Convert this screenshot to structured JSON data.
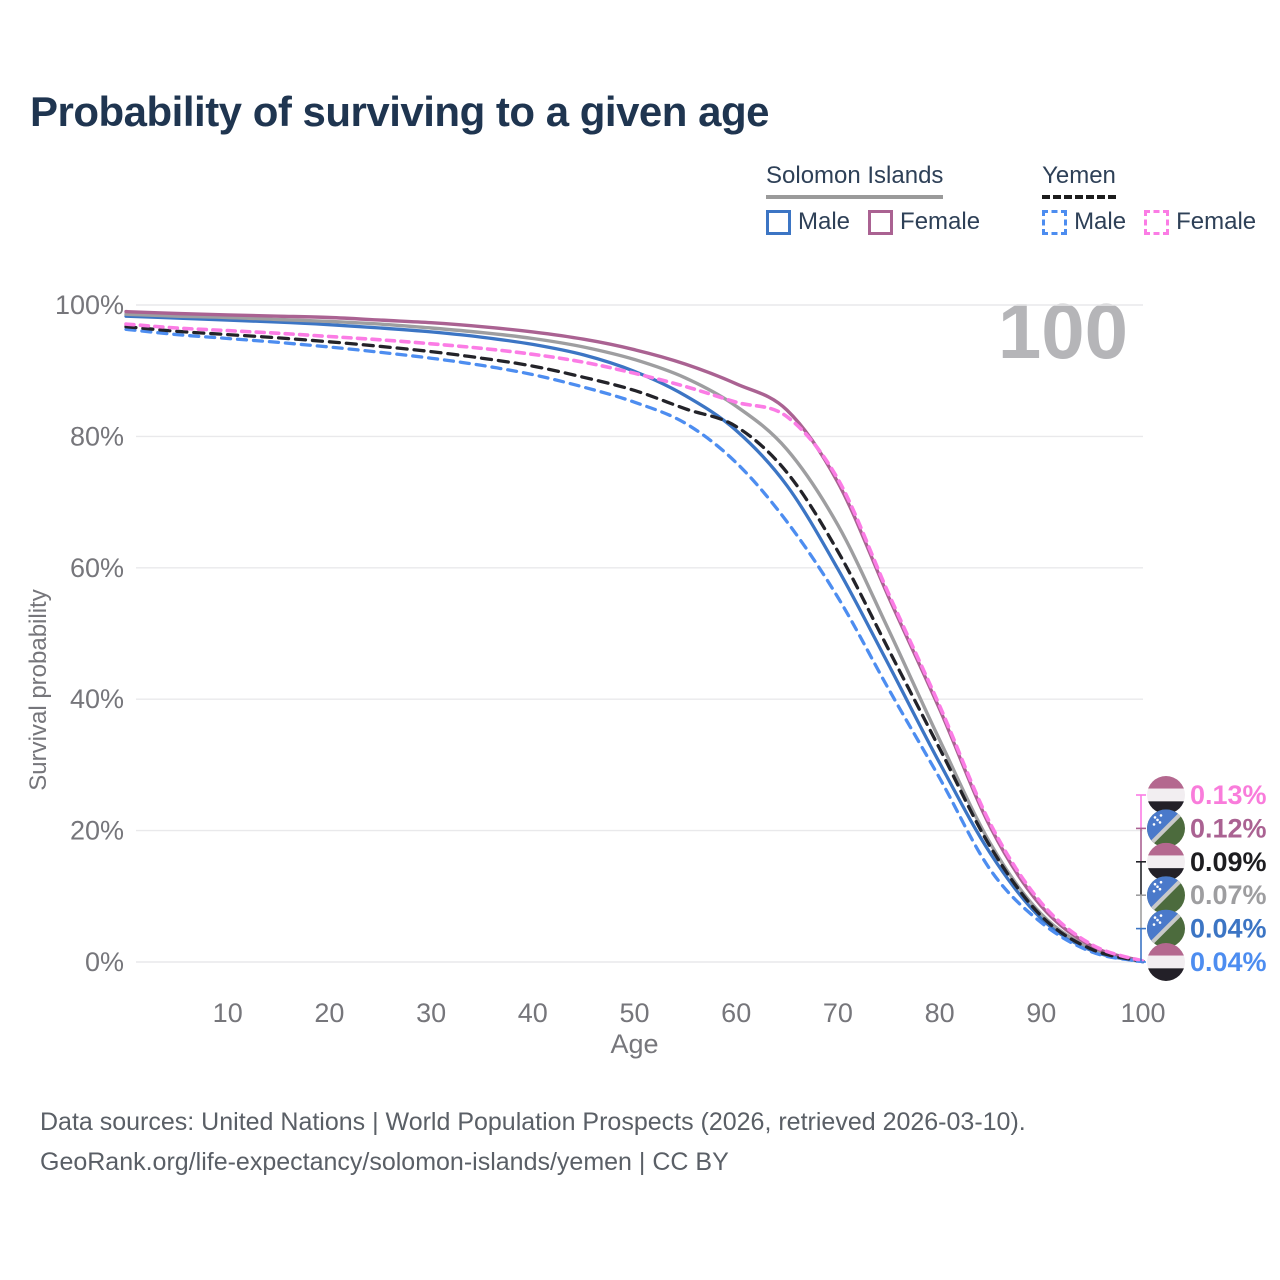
{
  "page": {
    "title": "Probability of surviving to a given age"
  },
  "legend": {
    "groups": [
      {
        "country": "Solomon Islands",
        "line_style": "solid",
        "underline_color": "#9a9a9a",
        "items": [
          {
            "label": "Male",
            "color": "#3c75c4",
            "dashed": false
          },
          {
            "label": "Female",
            "color": "#aa6292",
            "dashed": false
          }
        ]
      },
      {
        "country": "Yemen",
        "line_style": "dashed",
        "underline_color": "#1c1c1c",
        "items": [
          {
            "label": "Male",
            "color": "#4d8df0",
            "dashed": true
          },
          {
            "label": "Female",
            "color": "#fb7ce5",
            "dashed": true
          }
        ]
      }
    ]
  },
  "watermark": "100",
  "chart_data": {
    "type": "line",
    "title": "Probability of surviving to a given age",
    "xlabel": "Age",
    "ylabel": "Survival probability",
    "xlim": [
      0,
      100
    ],
    "ylim": [
      0,
      100
    ],
    "grid": "horizontal",
    "legend_position": "top-right",
    "x_ticks": [
      10,
      20,
      30,
      40,
      50,
      60,
      70,
      80,
      90,
      100
    ],
    "y_ticks": [
      {
        "value": 0,
        "label": "0%"
      },
      {
        "value": 20,
        "label": "20%"
      },
      {
        "value": 40,
        "label": "40%"
      },
      {
        "value": 60,
        "label": "60%"
      },
      {
        "value": 80,
        "label": "80%"
      },
      {
        "value": 100,
        "label": "100%"
      }
    ],
    "ages": [
      0,
      5,
      10,
      15,
      20,
      25,
      30,
      35,
      40,
      45,
      50,
      55,
      60,
      65,
      70,
      75,
      80,
      85,
      90,
      95,
      100
    ],
    "series": [
      {
        "id": "si-male",
        "name": "Male",
        "country": "Solomon Islands",
        "color": "#3c75c4",
        "label_color": "#3c75c4",
        "dash": null,
        "width": 3.3,
        "flag": "solomon-islands",
        "end_label": "0.04%",
        "label_rank": 4,
        "values": [
          98.3,
          98.0,
          97.7,
          97.4,
          97.0,
          96.5,
          95.9,
          95.1,
          94.0,
          92.4,
          89.9,
          86.2,
          80.9,
          72.5,
          59.8,
          45.2,
          30.3,
          16.5,
          6.6,
          1.7,
          0.04
        ]
      },
      {
        "id": "si-all",
        "name": "Solomon Islands",
        "country": "Solomon Islands",
        "color": "#9e9ea0",
        "label_color": "#9e9ea0",
        "dash": null,
        "width": 3.4,
        "flag": "solomon-islands",
        "end_label": "0.07%",
        "label_rank": 3,
        "values": [
          98.6,
          98.3,
          98.1,
          97.8,
          97.5,
          97.1,
          96.5,
          95.8,
          94.9,
          93.6,
          91.7,
          88.9,
          84.6,
          78.0,
          66.5,
          50.5,
          33.8,
          18.0,
          7.3,
          2.0,
          0.07
        ]
      },
      {
        "id": "si-female",
        "name": "Female",
        "country": "Solomon Islands",
        "color": "#aa6292",
        "label_color": "#aa6292",
        "dash": null,
        "width": 3.4,
        "flag": "solomon-islands",
        "end_label": "0.12%",
        "label_rank": 1,
        "values": [
          99.0,
          98.7,
          98.5,
          98.3,
          98.1,
          97.7,
          97.3,
          96.7,
          95.9,
          94.8,
          93.2,
          91.0,
          88.0,
          84.0,
          73.0,
          55.5,
          38.5,
          20.5,
          8.5,
          2.4,
          0.12
        ]
      },
      {
        "id": "yemen-male",
        "name": "Male",
        "country": "Yemen",
        "color": "#4d8df0",
        "label_color": "#4d8df0",
        "dash": "9 7",
        "width": 3.3,
        "flag": "yemen",
        "end_label": "0.04%",
        "label_rank": 5,
        "values": [
          96.3,
          95.5,
          94.9,
          94.3,
          93.6,
          92.8,
          91.9,
          90.8,
          89.4,
          87.5,
          85.2,
          82.0,
          76.0,
          67.0,
          55.5,
          41.5,
          28.0,
          14.0,
          6.0,
          1.5,
          0.04
        ]
      },
      {
        "id": "yemen-all",
        "name": "Yemen",
        "country": "Yemen",
        "color": "#232329",
        "label_color": "#1d1d20",
        "dash": "10 7",
        "width": 3.3,
        "flag": "yemen",
        "end_label": "0.09%",
        "label_rank": 2,
        "values": [
          96.7,
          96.0,
          95.5,
          95.0,
          94.4,
          93.7,
          92.9,
          91.9,
          90.7,
          89.0,
          87.0,
          84.2,
          81.5,
          74.5,
          62.5,
          47.5,
          32.5,
          17.5,
          7.0,
          1.9,
          0.09
        ]
      },
      {
        "id": "yemen-female",
        "name": "Female",
        "country": "Yemen",
        "color": "#fb7ce5",
        "label_color": "#f97cdb",
        "dash": "8 6.5",
        "width": 3.6,
        "flag": "yemen",
        "end_label": "0.13%",
        "label_rank": 0,
        "values": [
          97.1,
          96.5,
          96.1,
          95.7,
          95.2,
          94.7,
          94.1,
          93.4,
          92.5,
          91.3,
          89.6,
          87.6,
          85.2,
          83.0,
          73.5,
          56.0,
          39.0,
          21.0,
          9.0,
          2.6,
          0.13
        ]
      }
    ]
  },
  "footer": {
    "line1": "Data sources: United Nations | World Population Prospects (2026, retrieved 2026-03-10).",
    "line2": "GeoRank.org/life-expectancy/solomon-islands/yemen | CC BY"
  }
}
